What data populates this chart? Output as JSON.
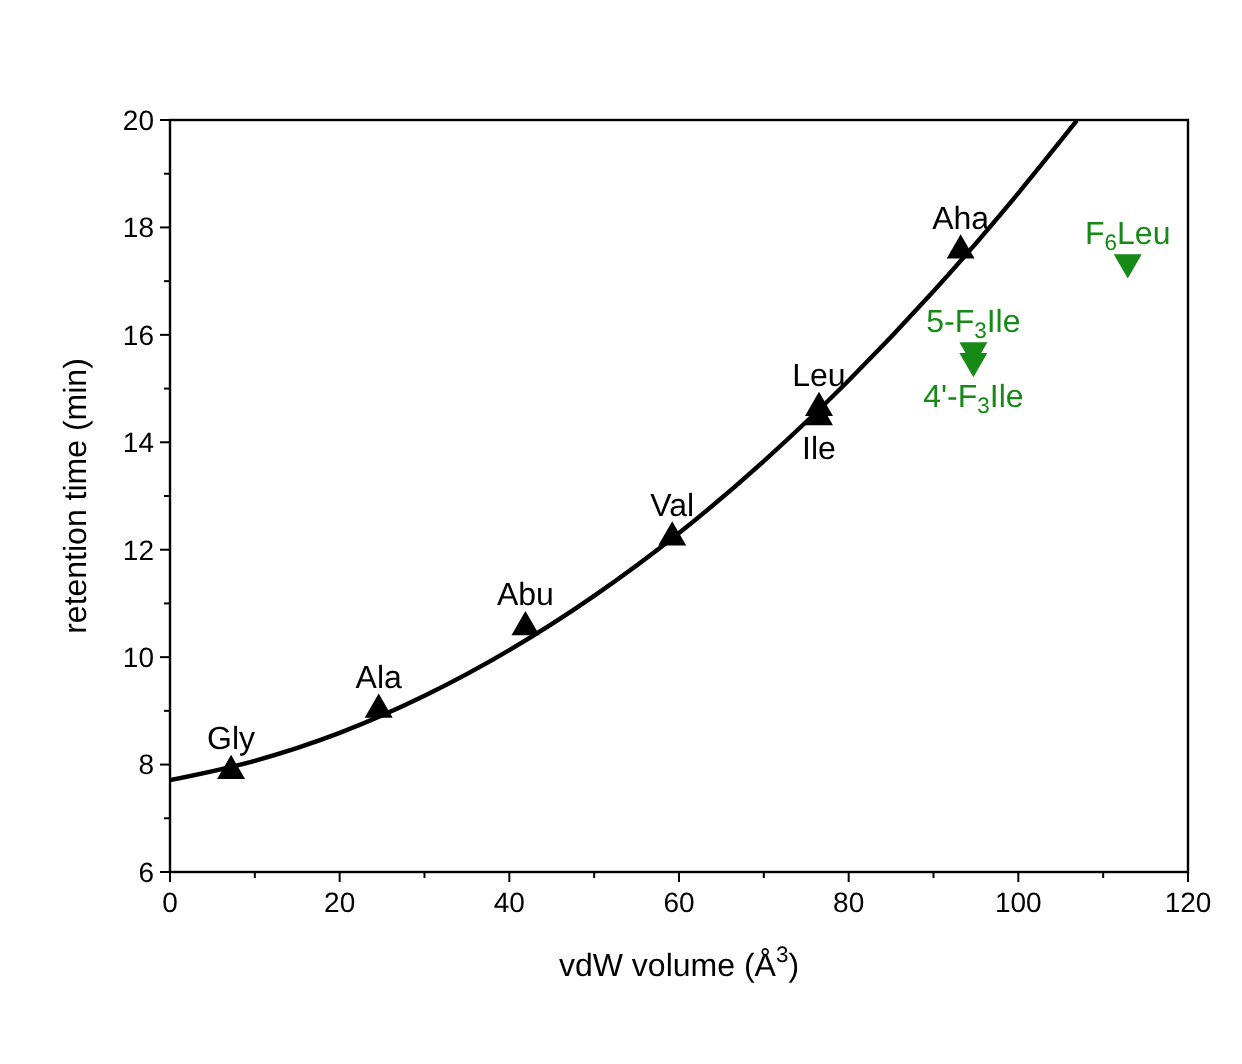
{
  "chart_data": {
    "type": "scatter",
    "xlabel": "vdW volume (Å$^{3}$)",
    "ylabel": "retention time (min)",
    "xlim": [
      0,
      120
    ],
    "ylim": [
      6,
      20
    ],
    "xticks": [
      0,
      {
        "value": 10,
        "label": null
      },
      20,
      {
        "value": 30,
        "label": null
      },
      40,
      {
        "value": 50,
        "label": null
      },
      60,
      {
        "value": 70,
        "label": null
      },
      80,
      {
        "value": 90,
        "label": null
      },
      100,
      {
        "value": 110,
        "label": null
      },
      120
    ],
    "yticks": [
      6,
      {
        "value": 7,
        "label": null
      },
      8,
      {
        "value": 9,
        "label": null
      },
      10,
      {
        "value": 11,
        "label": null
      },
      12,
      {
        "value": 13,
        "label": null
      },
      14,
      {
        "value": 15,
        "label": null
      },
      16,
      {
        "value": 17,
        "label": null
      },
      18,
      {
        "value": 19,
        "label": null
      },
      20
    ],
    "grid": false,
    "series": [
      {
        "type": "line",
        "color": "#000000",
        "marker": "none",
        "line_style": "solid",
        "x": [
          0,
          10,
          20,
          30,
          40,
          50,
          60,
          70,
          80,
          90,
          100,
          106.9
        ],
        "values": [
          7.71,
          8.07,
          8.59,
          9.28,
          10.13,
          11.14,
          12.31,
          13.65,
          15.15,
          16.81,
          18.64,
          19.99
        ]
      },
      {
        "color": "#000000",
        "marker": "triangle",
        "x": [
          7.2,
          24.6,
          41.9,
          59.2,
          76.5,
          76.5,
          93.2
        ],
        "values": [
          7.91,
          9.05,
          10.59,
          12.26,
          14.67,
          14.5,
          17.6
        ]
      },
      {
        "color": "#168916",
        "marker": "triangle-down",
        "x": [
          94.7,
          94.7,
          112.9
        ],
        "values": [
          15.68,
          15.48,
          17.32
        ]
      }
    ],
    "annotations": [
      {
        "text": "Gly",
        "x": 7.2,
        "y": 7.91
      },
      {
        "text": "Ala",
        "x": 24.6,
        "y": 9.05
      },
      {
        "text": "Abu",
        "x": 41.9,
        "y": 10.59
      },
      {
        "text": "Val",
        "x": 59.2,
        "y": 12.26
      },
      {
        "text": "Leu",
        "x": 76.5,
        "y": 14.67
      },
      {
        "text": "Ile",
        "x": 76.5,
        "y": 14.5
      },
      {
        "text": "Aha",
        "x": 93.2,
        "y": 17.6
      },
      {
        "text": "5-F$_{3}$Ile",
        "x": 94.7,
        "y": 15.68
      },
      {
        "text": "4'-F$_{3}$Ile",
        "x": 94.7,
        "y": 15.48
      },
      {
        "text": "F$_{6}$Leu",
        "x": 112.9,
        "y": 17.32
      }
    ]
  }
}
